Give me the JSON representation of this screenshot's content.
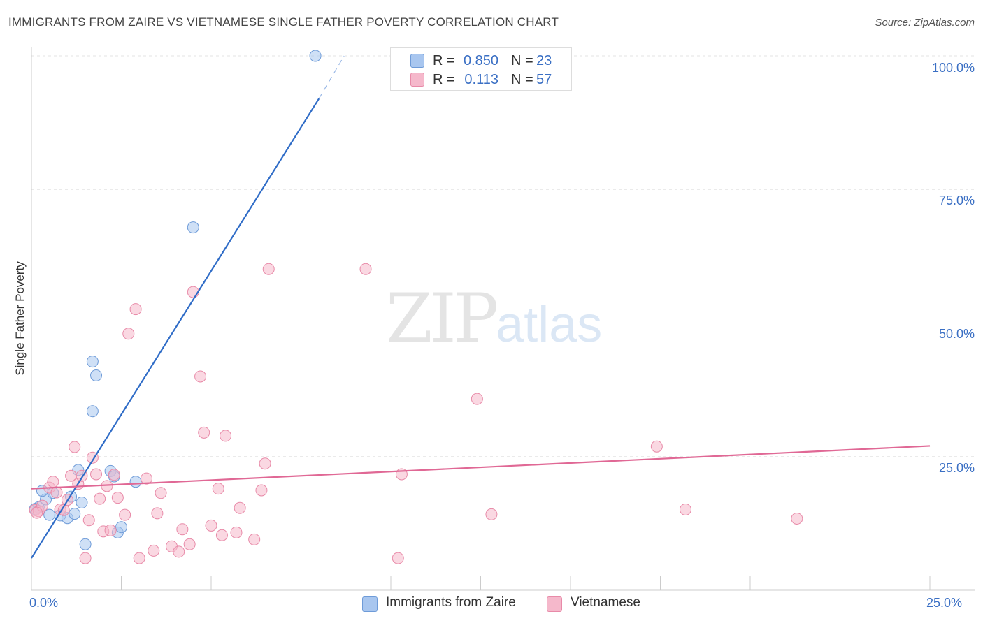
{
  "header": {
    "title": "IMMIGRANTS FROM ZAIRE VS VIETNAMESE SINGLE FATHER POVERTY CORRELATION CHART",
    "source": "Source: ZipAtlas.com"
  },
  "watermark": {
    "zip": "ZIP",
    "atlas": "atlas"
  },
  "stats": {
    "r_label": "R =",
    "n_label": "N =",
    "rows": [
      {
        "r": "0.850",
        "n": "23",
        "color": "#a8c6ef"
      },
      {
        "r": "0.113",
        "n": "57",
        "color": "#f5b8cb"
      }
    ]
  },
  "chart_data": {
    "type": "scatter",
    "title": "IMMIGRANTS FROM ZAIRE VS VIETNAMESE SINGLE FATHER POVERTY CORRELATION CHART",
    "xlabel": "",
    "ylabel": "Single Father Poverty",
    "xlim": [
      0,
      25
    ],
    "ylim": [
      0,
      100
    ],
    "x_tick_labels": [
      "0.0%",
      "25.0%"
    ],
    "y_tick_labels": [
      "25.0%",
      "50.0%",
      "75.0%",
      "100.0%"
    ],
    "y_ticks": [
      25,
      50,
      75,
      100
    ],
    "grid": true,
    "legend_position": "bottom",
    "series": [
      {
        "name": "Immigrants from Zaire",
        "color": "#a8c6ef",
        "stroke": "#6e9bd8",
        "trend_color": "#2f6cc7",
        "trend": [
          [
            0.0,
            6.0
          ],
          [
            8.0,
            92.0
          ]
        ],
        "trend_dash": [
          [
            8.0,
            92.0
          ],
          [
            8.7,
            100.0
          ]
        ],
        "points": [
          [
            0.2,
            15.5
          ],
          [
            0.4,
            17.0
          ],
          [
            0.3,
            18.6
          ],
          [
            0.6,
            18.2
          ],
          [
            0.8,
            14.0
          ],
          [
            1.0,
            13.5
          ],
          [
            1.1,
            17.5
          ],
          [
            1.2,
            14.3
          ],
          [
            1.4,
            16.4
          ],
          [
            1.3,
            22.5
          ],
          [
            1.5,
            8.6
          ],
          [
            1.7,
            33.5
          ],
          [
            1.8,
            40.2
          ],
          [
            1.7,
            42.8
          ],
          [
            2.2,
            22.3
          ],
          [
            2.3,
            21.3
          ],
          [
            2.4,
            10.8
          ],
          [
            2.5,
            11.8
          ],
          [
            2.9,
            20.3
          ],
          [
            4.5,
            67.9
          ],
          [
            7.9,
            100.0
          ],
          [
            0.1,
            15.2
          ],
          [
            0.5,
            14.1
          ]
        ]
      },
      {
        "name": "Vietnamese",
        "color": "#f5b8cb",
        "stroke": "#e88aa8",
        "trend_color": "#e06895",
        "trend": [
          [
            0.0,
            19.0
          ],
          [
            25.0,
            27.0
          ]
        ],
        "points": [
          [
            0.1,
            15.0
          ],
          [
            0.2,
            14.8
          ],
          [
            0.3,
            15.8
          ],
          [
            0.5,
            19.2
          ],
          [
            0.6,
            20.3
          ],
          [
            0.7,
            18.3
          ],
          [
            0.8,
            15.1
          ],
          [
            1.0,
            16.9
          ],
          [
            1.1,
            21.4
          ],
          [
            1.2,
            26.8
          ],
          [
            1.3,
            19.9
          ],
          [
            1.4,
            21.4
          ],
          [
            1.5,
            6.0
          ],
          [
            1.6,
            13.1
          ],
          [
            1.7,
            24.8
          ],
          [
            1.8,
            21.7
          ],
          [
            1.9,
            17.1
          ],
          [
            2.0,
            11.0
          ],
          [
            2.1,
            19.5
          ],
          [
            2.3,
            21.6
          ],
          [
            2.4,
            17.3
          ],
          [
            2.6,
            14.1
          ],
          [
            2.7,
            48.0
          ],
          [
            2.9,
            52.6
          ],
          [
            3.0,
            6.0
          ],
          [
            3.2,
            20.9
          ],
          [
            3.4,
            7.4
          ],
          [
            3.6,
            18.2
          ],
          [
            3.9,
            8.2
          ],
          [
            4.1,
            7.2
          ],
          [
            4.2,
            11.4
          ],
          [
            4.4,
            8.6
          ],
          [
            4.5,
            55.8
          ],
          [
            4.7,
            40.0
          ],
          [
            4.8,
            29.5
          ],
          [
            5.0,
            12.1
          ],
          [
            5.2,
            19.0
          ],
          [
            5.3,
            10.3
          ],
          [
            5.4,
            28.9
          ],
          [
            5.7,
            10.8
          ],
          [
            5.8,
            15.4
          ],
          [
            6.2,
            9.5
          ],
          [
            6.4,
            18.7
          ],
          [
            6.5,
            23.7
          ],
          [
            6.6,
            60.1
          ],
          [
            9.3,
            60.1
          ],
          [
            10.3,
            21.7
          ],
          [
            10.2,
            6.0
          ],
          [
            12.4,
            35.8
          ],
          [
            12.8,
            14.2
          ],
          [
            17.4,
            26.9
          ],
          [
            18.2,
            15.1
          ],
          [
            21.3,
            13.4
          ],
          [
            0.15,
            14.5
          ],
          [
            0.9,
            15.0
          ],
          [
            2.2,
            11.2
          ],
          [
            3.5,
            14.4
          ]
        ]
      }
    ]
  }
}
